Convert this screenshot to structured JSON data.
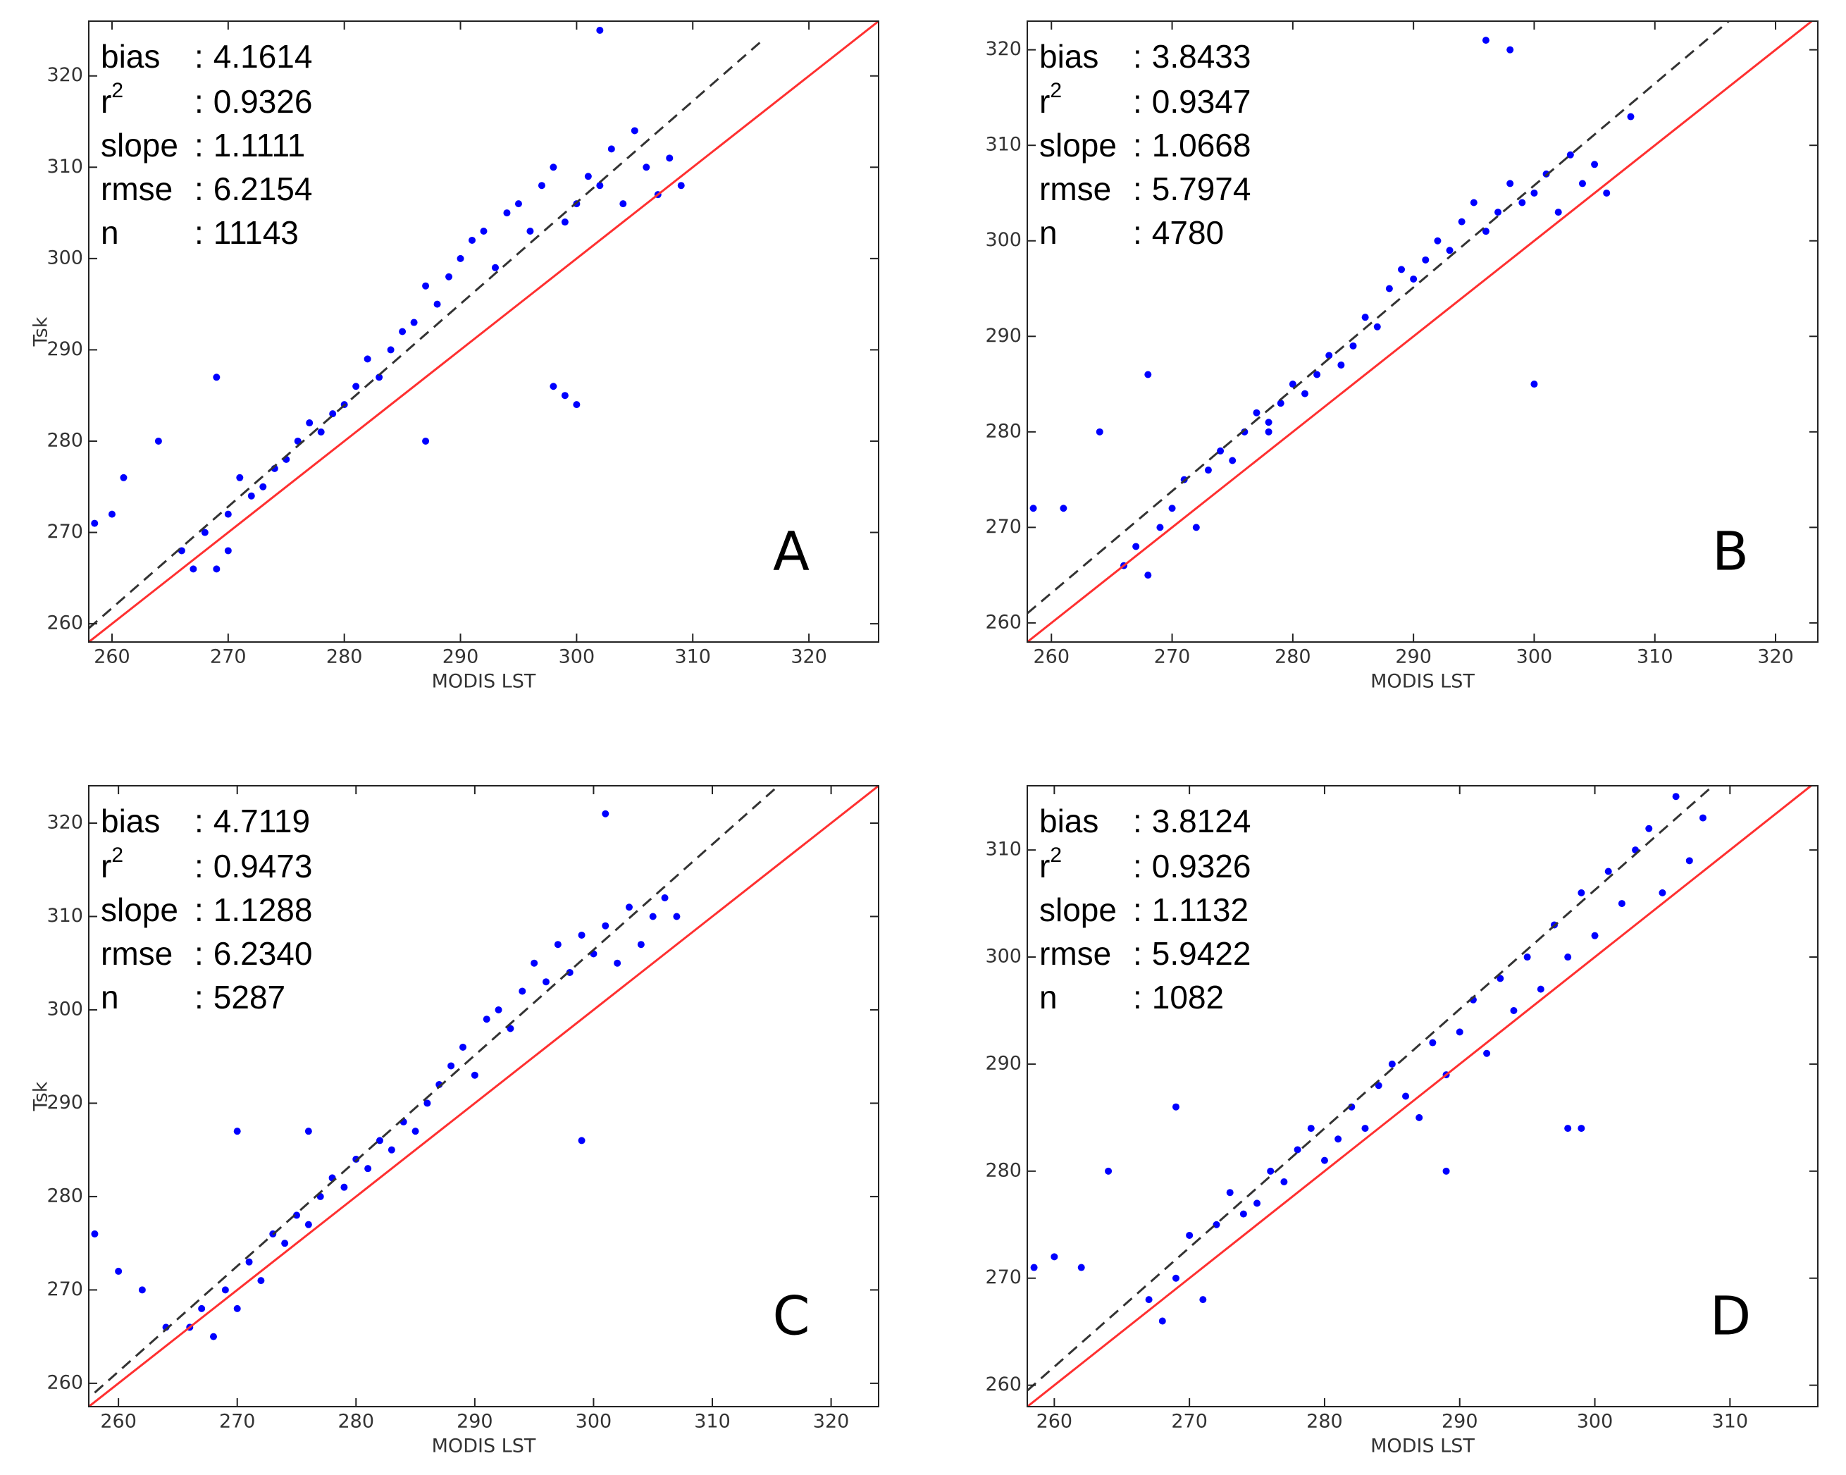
{
  "chart_data": [
    {
      "type": "scatter",
      "panel_label": "A",
      "xlabel": "MODIS LST",
      "ylabel": "Tsk",
      "color": "#0000ff",
      "xlim": [
        258,
        326
      ],
      "ylim": [
        258,
        326
      ],
      "xticks": [
        260,
        270,
        280,
        290,
        300,
        310,
        320
      ],
      "yticks": [
        260,
        270,
        280,
        290,
        300,
        310,
        320
      ],
      "stats": [
        {
          "name": "bias",
          "sep": ":",
          "value": "4.1614"
        },
        {
          "name": "r",
          "sup": "2",
          "sep": ":",
          "value": "0.9326"
        },
        {
          "name": "slope",
          "sep": ":",
          "value": "1.1111"
        },
        {
          "name": "rmse",
          "sep": ":",
          "value": "6.2154"
        },
        {
          "name": "n",
          "sep": ":",
          "value": "11143"
        }
      ],
      "lines": [
        {
          "x": [
            258,
            326
          ],
          "y": [
            258,
            326
          ],
          "color": "#ff3030",
          "style": "solid"
        },
        {
          "x": [
            258,
            316
          ],
          "y": [
            259.5,
            323.9
          ],
          "color": "#333333",
          "style": "dashed"
        }
      ],
      "x": [
        258.5,
        260,
        261,
        264,
        266,
        267,
        268,
        269,
        270,
        270,
        271,
        272,
        273,
        274,
        275,
        276,
        277,
        278,
        279,
        280,
        281,
        282,
        283,
        284,
        285,
        286,
        287,
        288,
        289,
        290,
        291,
        292,
        293,
        294,
        295,
        296,
        297,
        298,
        299,
        300,
        301,
        302,
        303,
        304,
        305,
        306,
        307,
        308,
        309,
        298,
        299,
        300,
        302,
        287,
        269
      ],
      "values": [
        271,
        272,
        276,
        280,
        268,
        266,
        270,
        266,
        272,
        268,
        276,
        274,
        275,
        277,
        278,
        280,
        282,
        281,
        283,
        284,
        286,
        289,
        287,
        290,
        292,
        293,
        297,
        295,
        298,
        300,
        302,
        303,
        299,
        305,
        306,
        303,
        308,
        310,
        304,
        306,
        309,
        308,
        312,
        306,
        314,
        310,
        307,
        311,
        308,
        286,
        285,
        284,
        325,
        280,
        287
      ]
    },
    {
      "type": "scatter",
      "panel_label": "B",
      "xlabel": "MODIS LST",
      "color": "#0000ff",
      "xlim": [
        258,
        323.5
      ],
      "ylim": [
        258,
        323
      ],
      "xticks": [
        260,
        270,
        280,
        290,
        300,
        310,
        320
      ],
      "yticks": [
        260,
        270,
        280,
        290,
        300,
        310,
        320
      ],
      "stats": [
        {
          "name": "bias",
          "sep": ":",
          "value": "3.8433"
        },
        {
          "name": "r",
          "sup": "2",
          "sep": ":",
          "value": "0.9347"
        },
        {
          "name": "slope",
          "sep": ":",
          "value": "1.0668"
        },
        {
          "name": "rmse",
          "sep": ":",
          "value": "5.7974"
        },
        {
          "name": "n",
          "sep": ":",
          "value": "4780"
        }
      ],
      "lines": [
        {
          "x": [
            258,
            323.5
          ],
          "y": [
            258,
            323.5
          ],
          "color": "#ff3030",
          "style": "solid"
        },
        {
          "x": [
            258,
            318
          ],
          "y": [
            261,
            325
          ],
          "color": "#333333",
          "style": "dashed"
        }
      ],
      "x": [
        258.5,
        261,
        264,
        266,
        267,
        268,
        269,
        270,
        271,
        272,
        273,
        274,
        275,
        276,
        277,
        278,
        279,
        280,
        281,
        282,
        283,
        284,
        285,
        286,
        287,
        288,
        289,
        290,
        291,
        292,
        293,
        294,
        295,
        296,
        297,
        298,
        299,
        300,
        301,
        302,
        303,
        304,
        305,
        306,
        308,
        296,
        298,
        300,
        278,
        268
      ],
      "values": [
        272,
        272,
        280,
        266,
        268,
        265,
        270,
        272,
        275,
        270,
        276,
        278,
        277,
        280,
        282,
        281,
        283,
        285,
        284,
        286,
        288,
        287,
        289,
        292,
        291,
        295,
        297,
        296,
        298,
        300,
        299,
        302,
        304,
        301,
        303,
        306,
        304,
        305,
        307,
        303,
        309,
        306,
        308,
        305,
        313,
        321,
        320,
        285,
        280,
        286
      ]
    },
    {
      "type": "scatter",
      "panel_label": "C",
      "xlabel": "MODIS LST",
      "ylabel": "Tsk",
      "color": "#0000ff",
      "xlim": [
        257.5,
        324
      ],
      "ylim": [
        257.5,
        324
      ],
      "xticks": [
        260,
        270,
        280,
        290,
        300,
        310,
        320
      ],
      "yticks": [
        260,
        270,
        280,
        290,
        300,
        310,
        320
      ],
      "stats": [
        {
          "name": "bias",
          "sep": ":",
          "value": "4.7119"
        },
        {
          "name": "r",
          "sup": "2",
          "sep": ":",
          "value": "0.9473"
        },
        {
          "name": "slope",
          "sep": ":",
          "value": "1.1288"
        },
        {
          "name": "rmse",
          "sep": ":",
          "value": "6.2340"
        },
        {
          "name": "n",
          "sep": ":",
          "value": "5287"
        }
      ],
      "lines": [
        {
          "x": [
            257.5,
            324
          ],
          "y": [
            257.5,
            324
          ],
          "color": "#ff3030",
          "style": "solid"
        },
        {
          "x": [
            258,
            316
          ],
          "y": [
            259,
            324.5
          ],
          "color": "#333333",
          "style": "dashed"
        }
      ],
      "x": [
        258,
        260,
        262,
        264,
        266,
        267,
        268,
        269,
        270,
        271,
        272,
        273,
        274,
        275,
        276,
        277,
        278,
        279,
        280,
        281,
        282,
        283,
        284,
        285,
        286,
        287,
        288,
        289,
        290,
        291,
        292,
        293,
        294,
        295,
        296,
        297,
        298,
        299,
        300,
        301,
        302,
        303,
        304,
        305,
        306,
        307,
        299,
        301,
        270,
        276
      ],
      "values": [
        276,
        272,
        270,
        266,
        266,
        268,
        265,
        270,
        268,
        273,
        271,
        276,
        275,
        278,
        277,
        280,
        282,
        281,
        284,
        283,
        286,
        285,
        288,
        287,
        290,
        292,
        294,
        296,
        293,
        299,
        300,
        298,
        302,
        305,
        303,
        307,
        304,
        308,
        306,
        309,
        305,
        311,
        307,
        310,
        312,
        310,
        286,
        321,
        287,
        287
      ]
    },
    {
      "type": "scatter",
      "panel_label": "D",
      "xlabel": "MODIS LST",
      "color": "#0000ff",
      "xlim": [
        258,
        316.5
      ],
      "ylim": [
        258,
        316
      ],
      "xticks": [
        260,
        270,
        280,
        290,
        300,
        310
      ],
      "yticks": [
        260,
        270,
        280,
        290,
        300,
        310
      ],
      "stats": [
        {
          "name": "bias",
          "sep": ":",
          "value": "3.8124"
        },
        {
          "name": "r",
          "sup": "2",
          "sep": ":",
          "value": "0.9326"
        },
        {
          "name": "slope",
          "sep": ":",
          "value": "1.1132"
        },
        {
          "name": "rmse",
          "sep": ":",
          "value": "5.9422"
        },
        {
          "name": "n",
          "sep": ":",
          "value": "1082"
        }
      ],
      "lines": [
        {
          "x": [
            258,
            316.5
          ],
          "y": [
            258,
            316.5
          ],
          "color": "#ff3030",
          "style": "solid"
        },
        {
          "x": [
            258,
            310
          ],
          "y": [
            259.5,
            317.4
          ],
          "color": "#333333",
          "style": "dashed"
        }
      ],
      "x": [
        258.5,
        260,
        262,
        264,
        267,
        268,
        269,
        270,
        271,
        272,
        273,
        274,
        275,
        276,
        277,
        278,
        279,
        280,
        281,
        282,
        283,
        284,
        285,
        286,
        287,
        288,
        289,
        290,
        291,
        292,
        293,
        294,
        295,
        296,
        297,
        298,
        299,
        300,
        301,
        302,
        303,
        304,
        305,
        306,
        307,
        308,
        298,
        299,
        269,
        289
      ],
      "values": [
        271,
        272,
        271,
        280,
        268,
        266,
        270,
        274,
        268,
        275,
        278,
        276,
        277,
        280,
        279,
        282,
        284,
        281,
        283,
        286,
        284,
        288,
        290,
        287,
        285,
        292,
        289,
        293,
        296,
        291,
        298,
        295,
        300,
        297,
        303,
        300,
        306,
        302,
        308,
        305,
        310,
        312,
        306,
        315,
        309,
        313,
        284,
        284,
        286,
        280
      ]
    }
  ]
}
